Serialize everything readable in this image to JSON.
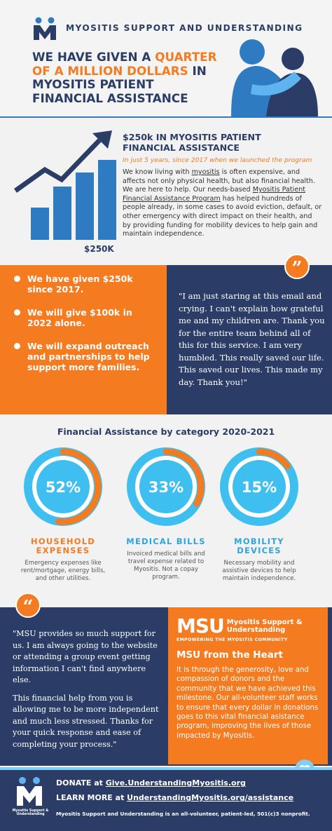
{
  "header": {
    "org": "MYOSITIS SUPPORT AND UNDERSTANDING",
    "headline": [
      "WE HAVE GIVEN A ",
      "QUARTER OF A MILLION DOLLARS",
      " IN MYOSITIS PATIENT FINANCIAL ASSISTANCE"
    ]
  },
  "intro": {
    "chart_label": "$250K",
    "title": "$250k IN MYOSITIS PATIENT FINANCIAL ASSISTANCE",
    "subtitle": "In just 5 years, since 2017 when we launched the program",
    "body": [
      "We know living with ",
      "myositis",
      " is often expensive, and affects not only physical health, but also financial health. We are here to help. Our needs-based ",
      "Myositis Patient Financial Assistance Program",
      " has helped hundreds of people already, in some cases to avoid eviction, default, or other emergency with direct impact on their health, and by providing funding for mobility devices to help gain and maintain independence."
    ]
  },
  "goals": [
    "We have given $250k since 2017.",
    "We will give $100k in 2022 alone.",
    "We will expand outreach and partnerships to help support more families."
  ],
  "quote1": "\"I am just staring at this email and crying. I can't explain how grateful me and my children are. Thank you for the entire team behind all of this for this service. I am very humbled. This really saved our life. This saved our lives. This made my day. Thank you!\"",
  "categories": {
    "title": "Financial Assistance by category 2020-2021",
    "items": [
      {
        "value": 52,
        "value_label": "52%",
        "name": "HOUSEHOLD EXPENSES",
        "description": "Emergency expenses like rent/mortgage, energy bills, and other utilities."
      },
      {
        "value": 33,
        "value_label": "33%",
        "name": "MEDICAL BILLS",
        "description": "Invoiced medical bills and travel expense related to Myositis. Not a copay program."
      },
      {
        "value": 15,
        "value_label": "15%",
        "name": "MOBILITY DEVICES",
        "description": "Necessary mobility and assistive devices to help maintain independence."
      }
    ]
  },
  "quote2": [
    "\"MSU provides so much support for us. I am always going to the website or attending a group event getting information I can't find anywhere else.",
    "This financial help from you is allowing me to be more independent and much less stressed. Thanks for your quick response and ease of completing your process.\""
  ],
  "heart": {
    "logo": "MSU",
    "logo_name": "Myositis Support & Understanding",
    "tagline": "EMPOWERING THE MYOSITIS COMMUNITY",
    "title": "MSU from the Heart",
    "body": "It is through the generosity, love and compassion of donors and the community that we have achieved this milestone. Our all-volunteer staff works to ensure that every dollar in donations goes to this vital financial asistance program, improving the lives of those impacted by Myositis."
  },
  "footer": {
    "logo_name": "Myositis Support & Understanding",
    "donate": [
      "DONATE at ",
      "Give.UnderstandingMyositis.org"
    ],
    "learn": [
      "LEARN MORE at ",
      "UnderstandingMyositis.org/assistance"
    ],
    "note": "Myositis Support and Understanding is an all-volunteer, patient-led, 501(c)3 nonprofit."
  }
}
